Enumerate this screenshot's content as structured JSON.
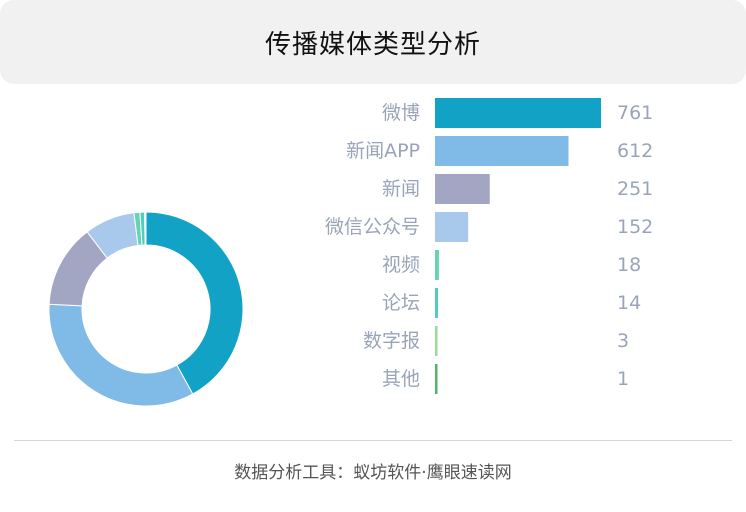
{
  "header": {
    "title": "传播媒体类型分析"
  },
  "footer": {
    "text": "数据分析工具：蚁坊软件·鹰眼速读网"
  },
  "chart_data": [
    {
      "type": "pie",
      "variant": "donut",
      "labels": [
        "微博",
        "新闻APP",
        "新闻",
        "微信公众号",
        "视频",
        "论坛",
        "数字报",
        "其他"
      ],
      "values": [
        761,
        612,
        251,
        152,
        18,
        14,
        3,
        1
      ],
      "colors": [
        "#12a2c5",
        "#7fbbe6",
        "#a2a6c2",
        "#a9c9ec",
        "#66d4b0",
        "#50cdbf",
        "#97dd93",
        "#54b466"
      ]
    },
    {
      "type": "bar",
      "orientation": "horizontal",
      "categories": [
        "微博",
        "新闻APP",
        "新闻",
        "微信公众号",
        "视频",
        "论坛",
        "数字报",
        "其他"
      ],
      "values": [
        761,
        612,
        251,
        152,
        18,
        14,
        3,
        1
      ],
      "value_labels": [
        "761",
        "612",
        "251",
        "152",
        "18",
        "14",
        "3",
        "1"
      ],
      "colors": [
        "#12a2c5",
        "#7fbbe6",
        "#a2a6c2",
        "#a9c9ec",
        "#66d4b0",
        "#50cdbf",
        "#97dd93",
        "#54b466"
      ],
      "xlim": [
        0,
        761
      ],
      "grid": false
    }
  ]
}
